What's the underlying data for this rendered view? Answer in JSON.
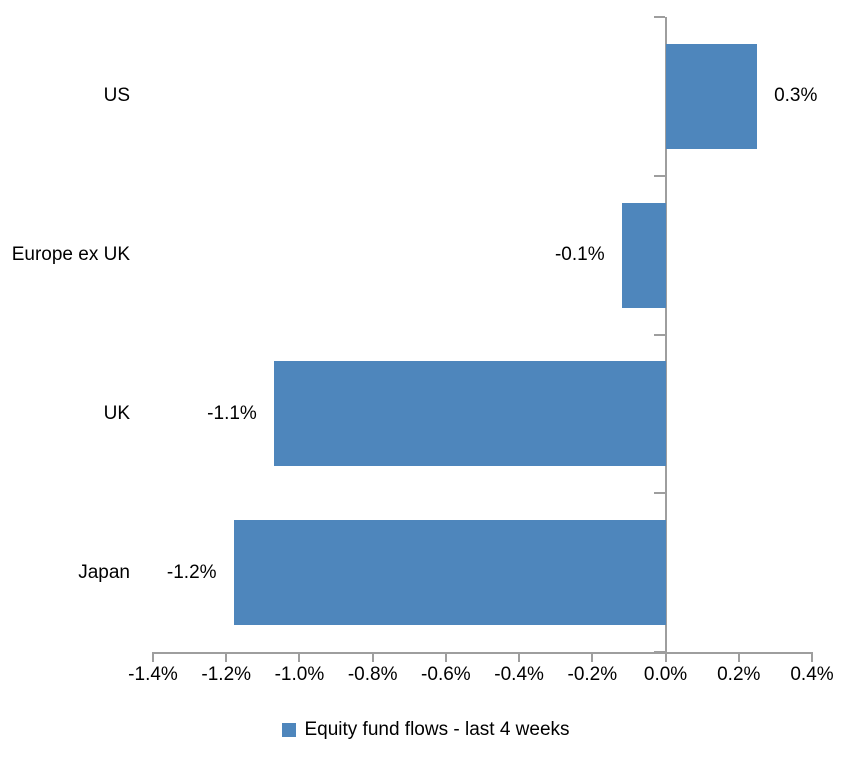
{
  "chart_data": {
    "type": "bar",
    "orientation": "horizontal",
    "title": "",
    "legend": "Equity fund flows - last 4 weeks",
    "legend_position": "bottom",
    "categories": [
      "US",
      "Europe ex UK",
      "UK",
      "Japan"
    ],
    "values": [
      0.3,
      -0.1,
      -1.1,
      -1.2
    ],
    "data_labels": [
      "0.3%",
      "-0.1%",
      "-1.1%",
      "-1.2%"
    ],
    "bar_lengths_pct": [
      0.25,
      -0.12,
      -1.07,
      -1.18
    ],
    "x_tick_values": [
      -1.4,
      -1.2,
      -1.0,
      -0.8,
      -0.6,
      -0.4,
      -0.2,
      0.0,
      0.2,
      0.4
    ],
    "x_tick_labels": [
      "-1.4%",
      "-1.2%",
      "-1.0%",
      "-0.8%",
      "-0.6%",
      "-0.4%",
      "-0.2%",
      "0.0%",
      "0.2%",
      "0.4%"
    ],
    "xlim": [
      -1.4,
      0.4
    ],
    "grid": false,
    "colors": {
      "bar": "#4E86BC",
      "axis": "#9E9E9E",
      "text": "#000000",
      "background": "#FFFFFF"
    }
  }
}
